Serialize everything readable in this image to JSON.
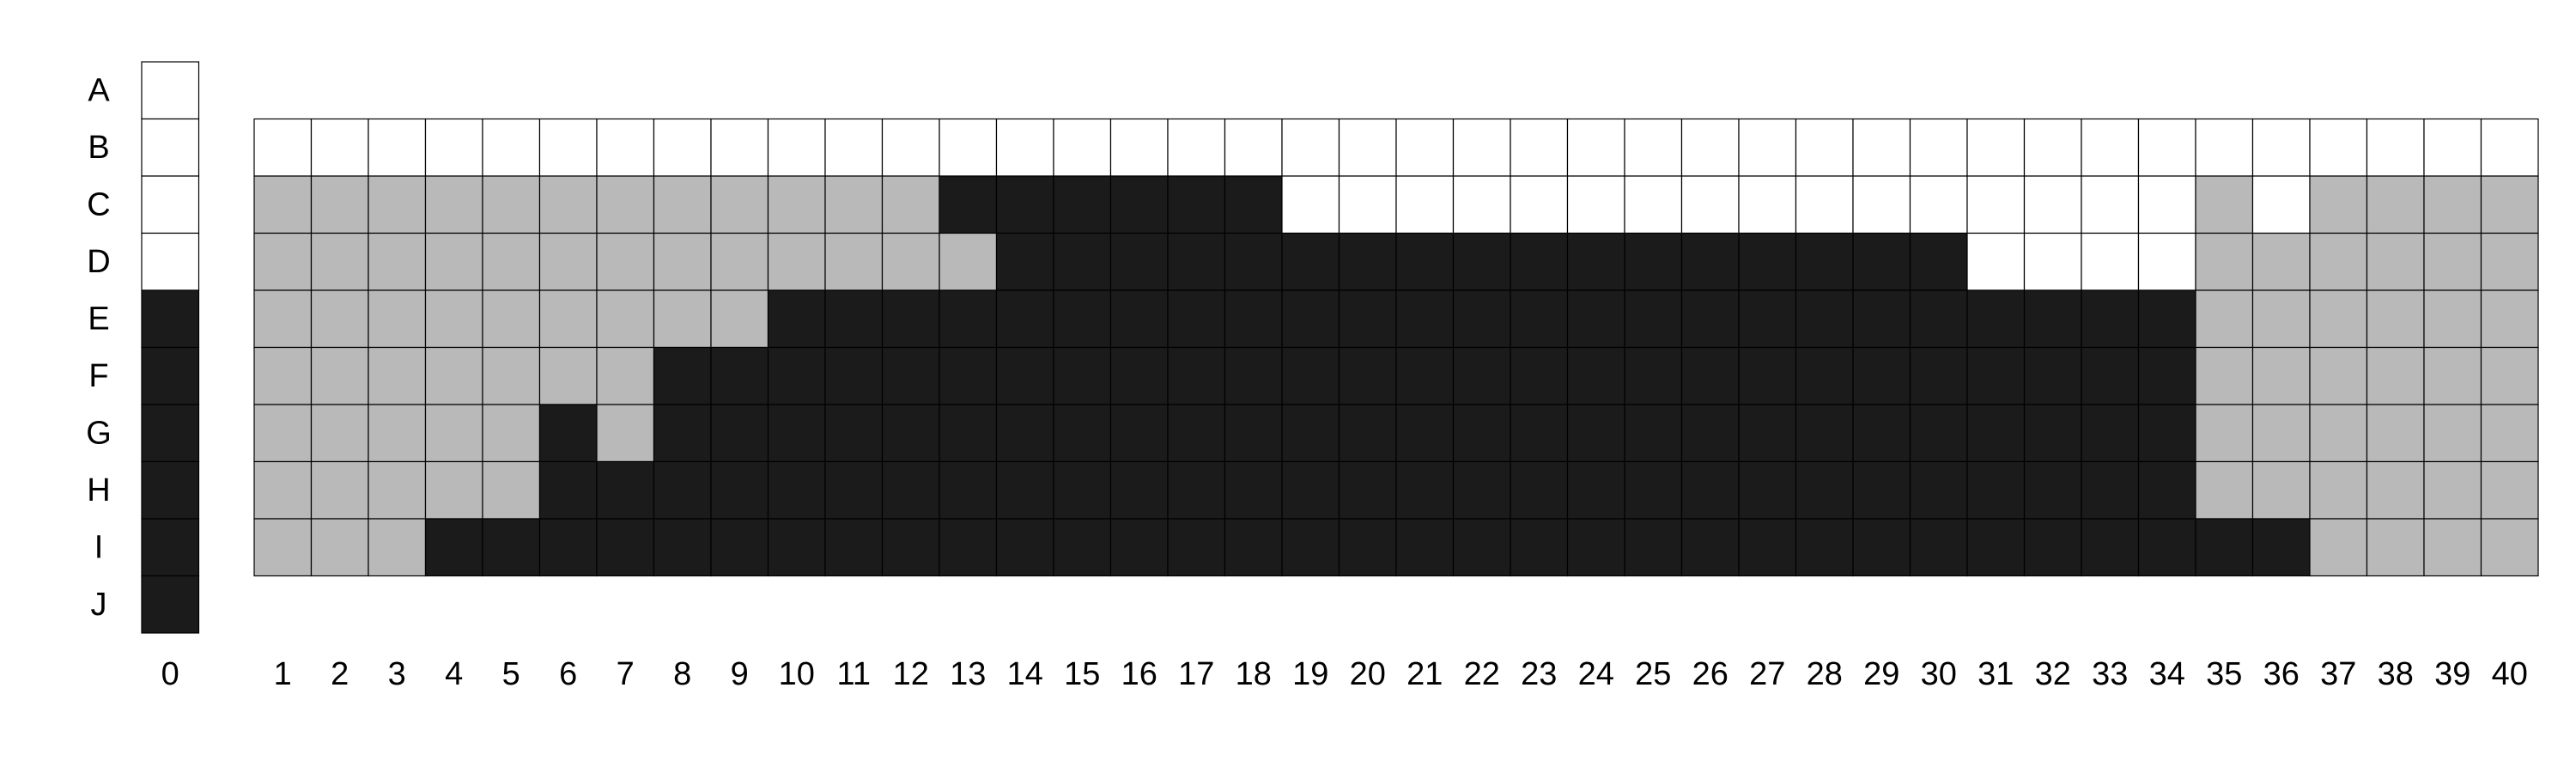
{
  "colors": {
    "white": "#ffffff",
    "gray": "#b9b9b9",
    "black": "#1b1b1b"
  },
  "legend_key": {
    "W": "white",
    "G": "gray",
    "K": "black"
  },
  "rows": [
    "A",
    "B",
    "C",
    "D",
    "E",
    "F",
    "G",
    "H",
    "I",
    "J"
  ],
  "reference_column": {
    "label": "0",
    "cells": [
      "W",
      "W",
      "W",
      "W",
      "K",
      "K",
      "K",
      "K",
      "K",
      "K"
    ]
  },
  "main_grid": {
    "columns": [
      "1",
      "2",
      "3",
      "4",
      "5",
      "6",
      "7",
      "8",
      "9",
      "10",
      "11",
      "12",
      "13",
      "14",
      "15",
      "16",
      "17",
      "18",
      "19",
      "20",
      "21",
      "22",
      "23",
      "24",
      "25",
      "26",
      "27",
      "28",
      "29",
      "30",
      "31",
      "32",
      "33",
      "34",
      "35",
      "36",
      "37",
      "38",
      "39",
      "40"
    ],
    "rows": [
      "B",
      "C",
      "D",
      "E",
      "F",
      "G",
      "H",
      "I"
    ],
    "cells": [
      "WWWWWWWWWWWWWWWWWWWWWWWWWWWWWWWWWWWWWWWW",
      "GGGGGGGGGGGGKKKKKKWWWWWWWWWWWWWWWWGWGGGG",
      "GGGGGGGGGGGGGKKKKKKKKKKKKKKKKKWWWWGGGGGG",
      "GGGGGGGGGKKKKKKKKKKKKKKKKKKKKKKKKKGGGGGG",
      "GGGGGGGKKKKKKKKKKKKKKKKKKKKKKKKKKKGGGGGG",
      "GGGGGKGKKKKKKKKKKKKKKKKKKKKKKKKKKKGGGGGG",
      "GGGGGKKKKKKKKKKKKKKKKKKKKKKKKKKKKKGGGGGG",
      "GGGKKKKKKKKKKKKKKKKKKKKKKKKKKKKKKKKKGGGG"
    ]
  }
}
